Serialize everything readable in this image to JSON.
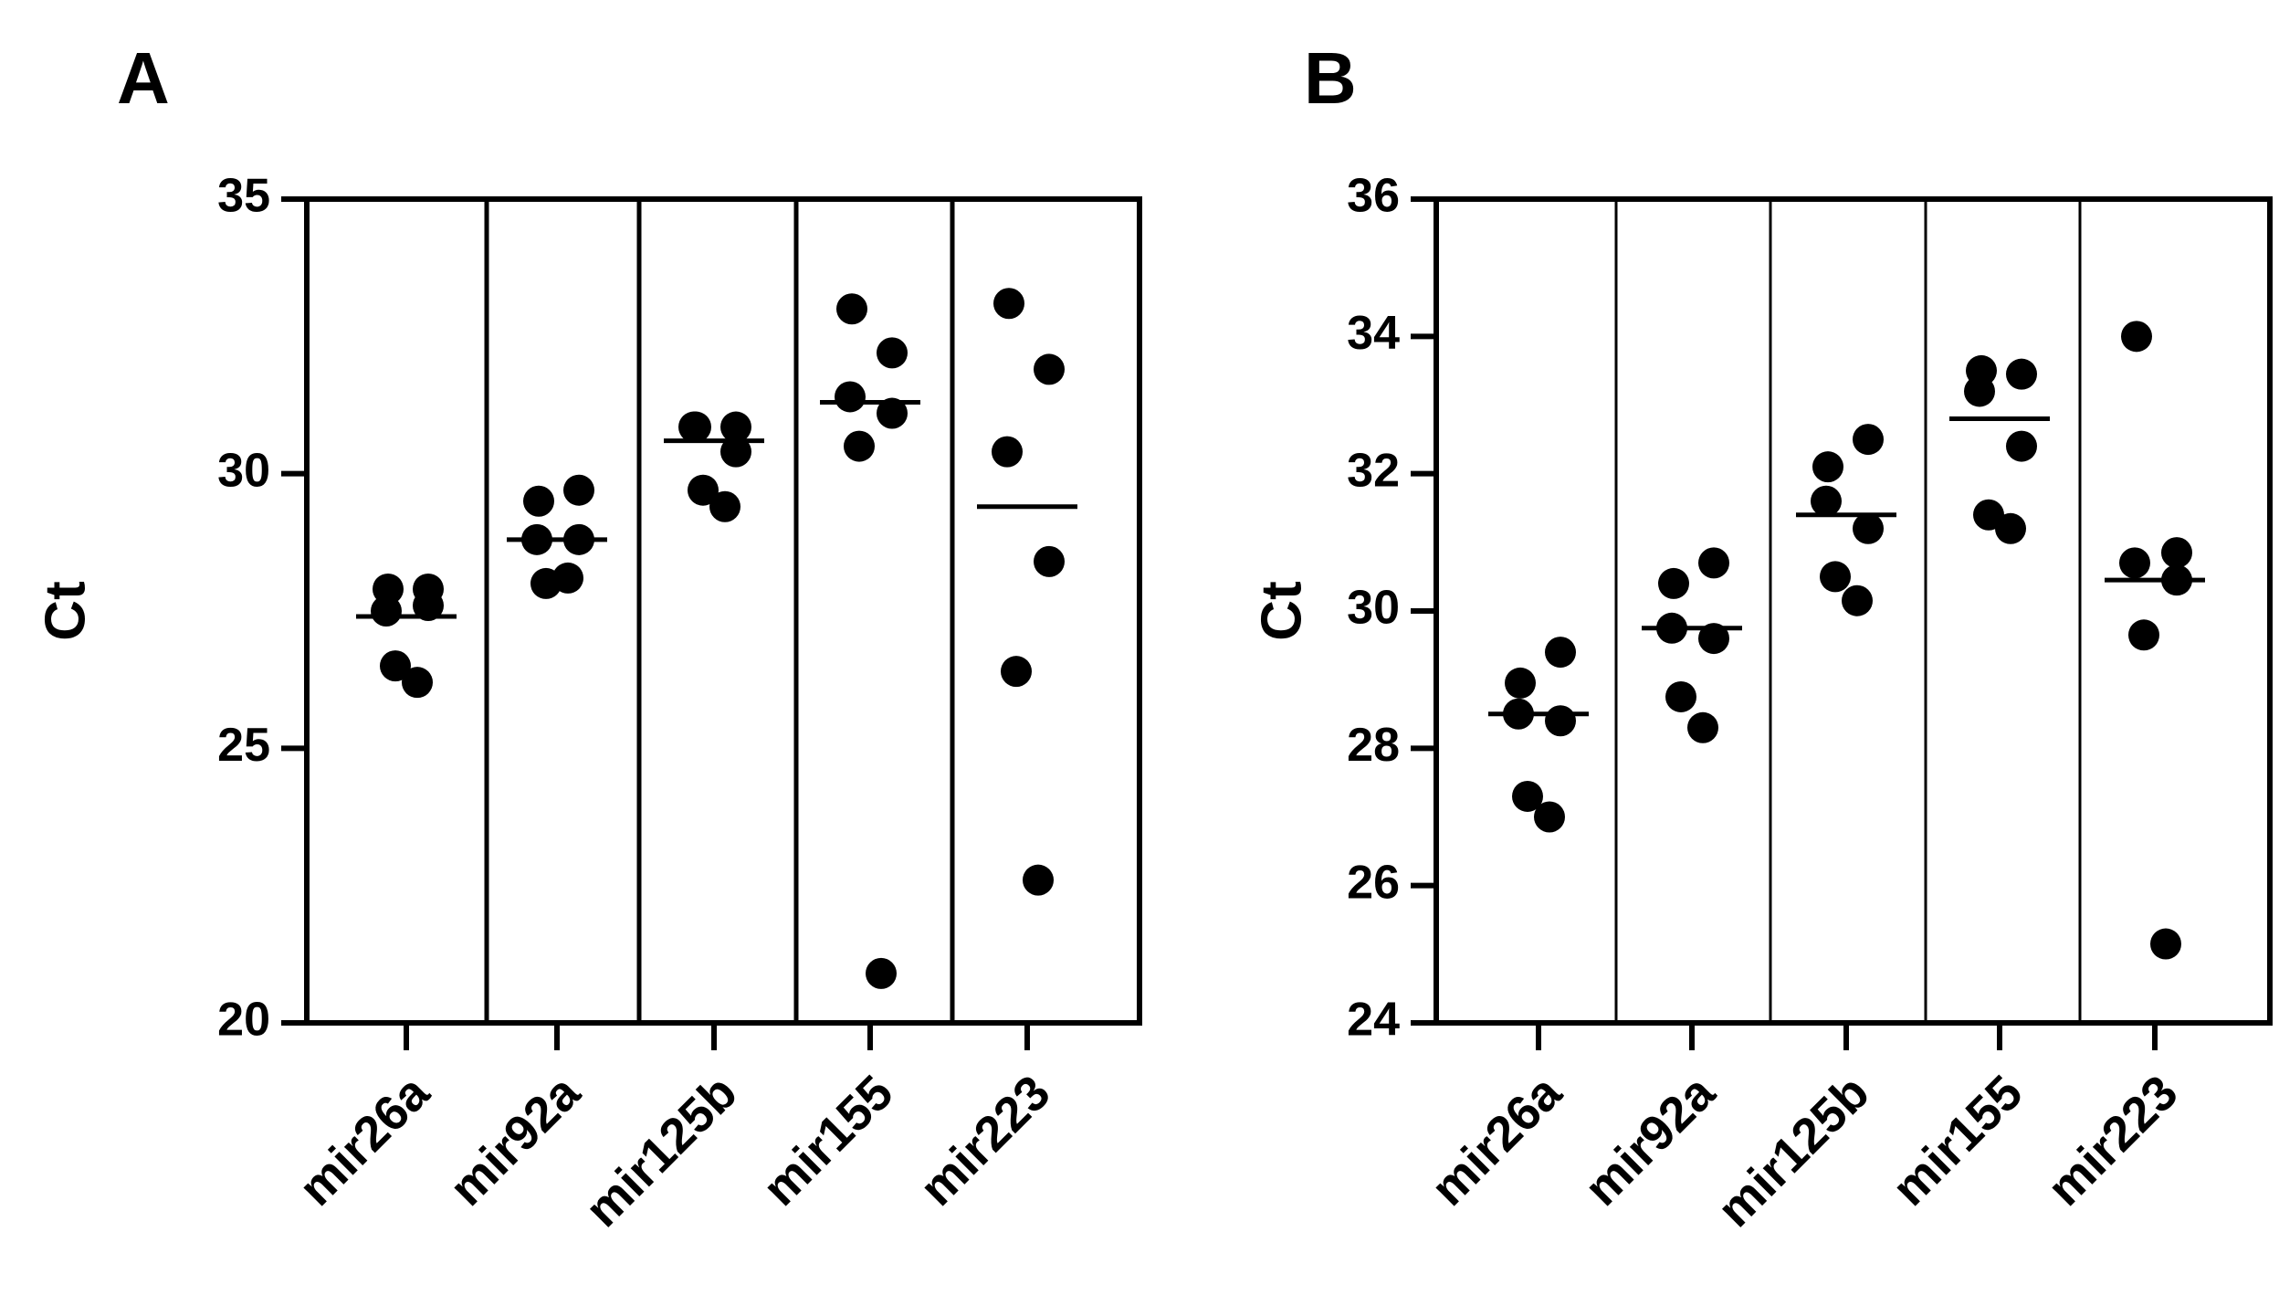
{
  "chart_data": [
    {
      "type": "scatter",
      "panel_label": "A",
      "ylabel": "Ct",
      "ylim": [
        20,
        35
      ],
      "yticks": [
        20,
        25,
        30,
        35
      ],
      "categories": [
        "mir26a",
        "mir92a",
        "mir125b",
        "mir155",
        "mir223"
      ],
      "points": [
        [
          27.9,
          27.9,
          27.5,
          27.6,
          26.5,
          26.2
        ],
        [
          29.5,
          29.7,
          28.8,
          28.8,
          28.0,
          28.1
        ],
        [
          30.85,
          30.85,
          30.85,
          30.4,
          29.7,
          29.4
        ],
        [
          33.0,
          32.2,
          31.4,
          31.1,
          30.5,
          20.9
        ],
        [
          33.1,
          31.9,
          30.4,
          28.4,
          26.4,
          22.6
        ]
      ],
      "means": [
        27.4,
        28.8,
        30.6,
        31.3,
        29.4
      ]
    },
    {
      "type": "scatter",
      "panel_label": "B",
      "ylabel": "Ct",
      "ylim": [
        24,
        36
      ],
      "yticks": [
        24,
        26,
        28,
        30,
        32,
        34,
        36
      ],
      "categories": [
        "mir26a",
        "mir92a",
        "mir125b",
        "mir155",
        "mir223"
      ],
      "points": [
        [
          28.95,
          29.4,
          28.5,
          28.4,
          27.3,
          27.0
        ],
        [
          30.4,
          30.7,
          29.75,
          29.6,
          28.75,
          28.3
        ],
        [
          32.1,
          32.5,
          31.6,
          31.2,
          30.5,
          30.15
        ],
        [
          33.5,
          33.45,
          33.2,
          32.4,
          31.4,
          31.2
        ],
        [
          34.0,
          30.85,
          30.7,
          30.45,
          29.65,
          25.15
        ]
      ],
      "means": [
        28.5,
        29.75,
        31.4,
        32.8,
        30.45
      ]
    }
  ]
}
